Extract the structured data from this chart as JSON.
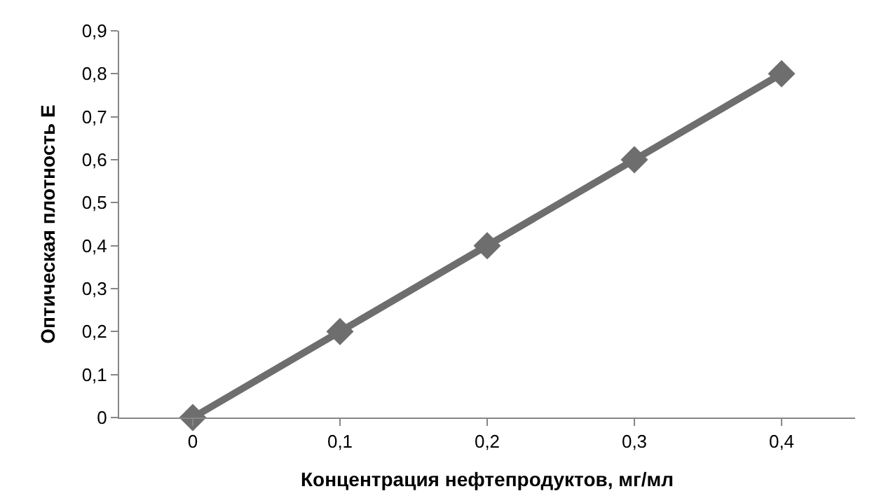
{
  "chart_data": {
    "type": "line",
    "xlabel": "Концентрация нефтепродуктов, мг/мл",
    "ylabel": "Оптическая плотность Е",
    "categories": [
      "0",
      "0,1",
      "0,2",
      "0,3",
      "0,4"
    ],
    "series": [
      {
        "color": "#6e6e6e",
        "values": [
          0,
          0.2,
          0.4,
          0.6,
          0.8
        ]
      }
    ],
    "ylim": [
      0,
      0.9
    ],
    "yticks": [
      0,
      {
        "value": 0.1,
        "label": "0,1"
      },
      {
        "value": 0.2,
        "label": "0,2"
      },
      {
        "value": 0.3,
        "label": "0,3"
      },
      {
        "value": 0.4,
        "label": "0,4"
      },
      {
        "value": 0.5,
        "label": "0,5"
      },
      {
        "value": 0.6,
        "label": "0,6"
      },
      {
        "value": 0.7,
        "label": "0,7"
      },
      {
        "value": 0.8,
        "label": "0,8"
      },
      {
        "value": 0.9,
        "label": "0,9"
      }
    ],
    "marker": "diamond",
    "line_style": "solid"
  }
}
